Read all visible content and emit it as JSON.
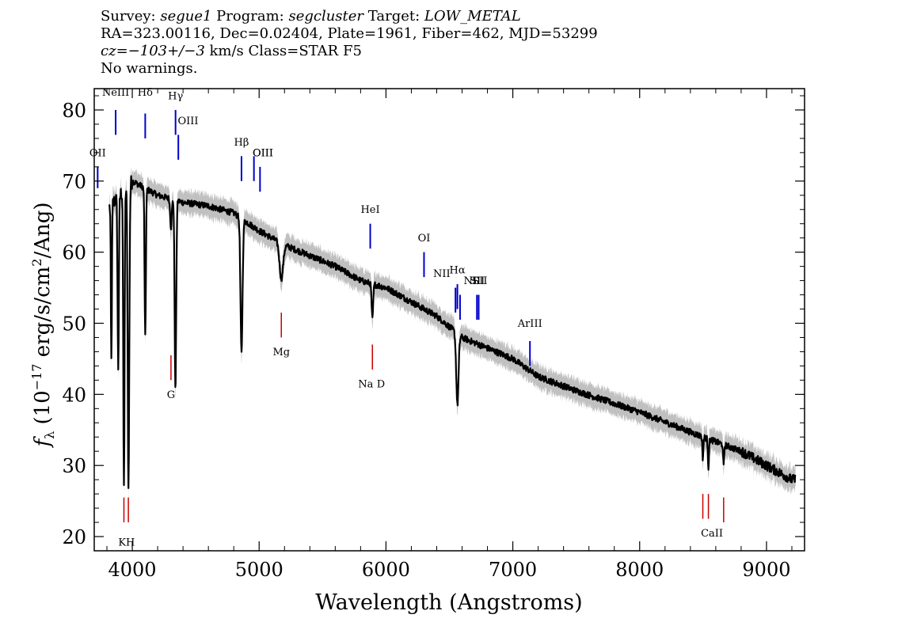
{
  "header": {
    "survey_label": "Survey:",
    "survey": "segue1",
    "program_label": "Program:",
    "program": "segcluster",
    "target_label": "Target:",
    "target": "LOW_METAL",
    "line2": "RA=323.00116, Dec=0.02404, Plate=1961, Fiber=462, MJD=53299",
    "cz_label": "cz=",
    "cz_value": "−103+/−3",
    "cz_tail": "km/s Class=STAR F5",
    "warnings": "No warnings."
  },
  "chart_data": {
    "type": "line",
    "xlabel": "Wavelength (Angstroms)",
    "ylabel": "fλ (10⁻¹⁷ erg/s/cm²/Ang)",
    "xlim": [
      3700,
      9300
    ],
    "ylim": [
      18,
      83
    ],
    "xticks": [
      4000,
      5000,
      6000,
      7000,
      8000,
      9000
    ],
    "yticks": [
      20,
      30,
      40,
      50,
      60,
      70,
      80
    ],
    "colors": {
      "spectrum": "#000000",
      "error_band": "#c0c0c0",
      "emission": "#0000cc",
      "absorption": "#cc0000"
    },
    "continuum": [
      [
        3800,
        66
      ],
      [
        3900,
        68
      ],
      [
        4000,
        70
      ],
      [
        4100,
        69
      ],
      [
        4200,
        68
      ],
      [
        4400,
        67
      ],
      [
        4600,
        66.5
      ],
      [
        4800,
        65.5
      ],
      [
        5000,
        63
      ],
      [
        5200,
        61
      ],
      [
        5400,
        59.5
      ],
      [
        5600,
        58
      ],
      [
        5800,
        56
      ],
      [
        6000,
        55
      ],
      [
        6200,
        53
      ],
      [
        6400,
        51
      ],
      [
        6600,
        48
      ],
      [
        6800,
        46.5
      ],
      [
        7000,
        45
      ],
      [
        7200,
        42.5
      ],
      [
        7500,
        40.5
      ],
      [
        8000,
        37.5
      ],
      [
        8500,
        34
      ],
      [
        8800,
        32
      ],
      [
        9000,
        30
      ],
      [
        9200,
        28
      ]
    ],
    "absorption_features": [
      {
        "center": 3835,
        "depth": 22,
        "width": 4
      },
      {
        "center": 3889,
        "depth": 24,
        "width": 5
      },
      {
        "center": 3934,
        "depth": 42,
        "width": 5
      },
      {
        "center": 3970,
        "depth": 43,
        "width": 6
      },
      {
        "center": 4102,
        "depth": 21,
        "width": 5
      },
      {
        "center": 4340,
        "depth": 27,
        "width": 6
      },
      {
        "center": 4305,
        "depth": 4,
        "width": 6
      },
      {
        "center": 4861,
        "depth": 19,
        "width": 8
      },
      {
        "center": 5175,
        "depth": 5,
        "width": 14
      },
      {
        "center": 5893,
        "depth": 5,
        "width": 6
      },
      {
        "center": 6563,
        "depth": 10,
        "width": 9
      },
      {
        "center": 8498,
        "depth": 3,
        "width": 4
      },
      {
        "center": 8542,
        "depth": 4,
        "width": 4
      },
      {
        "center": 8662,
        "depth": 3,
        "width": 4
      }
    ],
    "emission_lines": [
      {
        "label": "NeIII",
        "x": 3869,
        "y1": 76.5,
        "y2": 80.0,
        "label_y": 82.0,
        "label_x": 3869
      },
      {
        "label": "Hδ",
        "x": 4102,
        "y1": 76.0,
        "y2": 79.5,
        "label_y": 82.0,
        "label_x": 4102
      },
      {
        "label": "Hγ",
        "x": 4341,
        "y1": 76.5,
        "y2": 80.0,
        "label_y": 81.5,
        "label_x": 4341
      },
      {
        "label": "OIII",
        "x": 4363,
        "y1": 73.0,
        "y2": 76.5,
        "label_y": 78.0,
        "label_x": 4440
      },
      {
        "label": "OII",
        "x": 3727,
        "y1": 69.0,
        "y2": 72.0,
        "label_y": 73.5,
        "label_x": 3727
      },
      {
        "label": "Hβ",
        "x": 4861,
        "y1": 70.0,
        "y2": 73.5,
        "label_y": 75.0,
        "label_x": 4861
      },
      {
        "label": "OIII",
        "x": 4959,
        "y1": 70.0,
        "y2": 73.5,
        "label_y": 73.5,
        "label_x": 5030
      },
      {
        "label": "OIII",
        "x": 5007,
        "y1": 68.5,
        "y2": 72.0,
        "label_y": 73.5,
        "label_x": 5030
      },
      {
        "label": "HeI",
        "x": 5876,
        "y1": 60.5,
        "y2": 64.0,
        "label_y": 65.5,
        "label_x": 5876
      },
      {
        "label": "OI",
        "x": 6300,
        "y1": 56.5,
        "y2": 60.0,
        "label_y": 61.5,
        "label_x": 6300
      },
      {
        "label": "NII",
        "x": 6548,
        "y1": 51.5,
        "y2": 55.0,
        "label_y": 56.5,
        "label_x": 6440
      },
      {
        "label": "Hα",
        "x": 6563,
        "y1": 52.0,
        "y2": 55.5,
        "label_y": 57.0,
        "label_x": 6563
      },
      {
        "label": "NII",
        "x": 6584,
        "y1": 50.5,
        "y2": 54.0,
        "label_y": 55.5,
        "label_x": 6680
      },
      {
        "label": "SII",
        "x": 6717,
        "y1": 50.5,
        "y2": 54.0,
        "label_y": 55.5,
        "label_x": 6720
      },
      {
        "label": "SII",
        "x": 6731,
        "y1": 50.5,
        "y2": 54.0,
        "label_y": 55.5,
        "label_x": 6740
      },
      {
        "label": "ArIII",
        "x": 7135,
        "y1": 44.0,
        "y2": 47.5,
        "label_y": 49.5,
        "label_x": 7135
      }
    ],
    "absorption_lines": [
      {
        "label": "K",
        "x": 3934,
        "y1": 22.0,
        "y2": 25.5,
        "label_y": 18.7,
        "label_x": 3920
      },
      {
        "label": "H",
        "x": 3969,
        "y1": 22.0,
        "y2": 25.5,
        "label_y": 18.7,
        "label_x": 3985
      },
      {
        "label": "G",
        "x": 4305,
        "y1": 42.0,
        "y2": 45.5,
        "label_y": 39.5,
        "label_x": 4305
      },
      {
        "label": "Mg",
        "x": 5175,
        "y1": 48.0,
        "y2": 51.5,
        "label_y": 45.5,
        "label_x": 5175
      },
      {
        "label": "Na",
        "x": 5893,
        "y1": 43.5,
        "y2": 47.0,
        "label_y": 41.0,
        "label_x": 5840
      },
      {
        "label": "D",
        "x": 5893,
        "y1": 43.5,
        "y2": 47.0,
        "label_y": 41.0,
        "label_x": 5960
      },
      {
        "label": "CaII",
        "x": 8498,
        "y1": 22.5,
        "y2": 26.0,
        "label_y": 20.0,
        "label_x": 8570
      },
      {
        "label": "",
        "x": 8542,
        "y1": 22.5,
        "y2": 26.0,
        "label_y": 20.0,
        "label_x": 8542
      },
      {
        "label": "",
        "x": 8662,
        "y1": 22.0,
        "y2": 25.5,
        "label_y": 20.0,
        "label_x": 8662
      }
    ]
  }
}
